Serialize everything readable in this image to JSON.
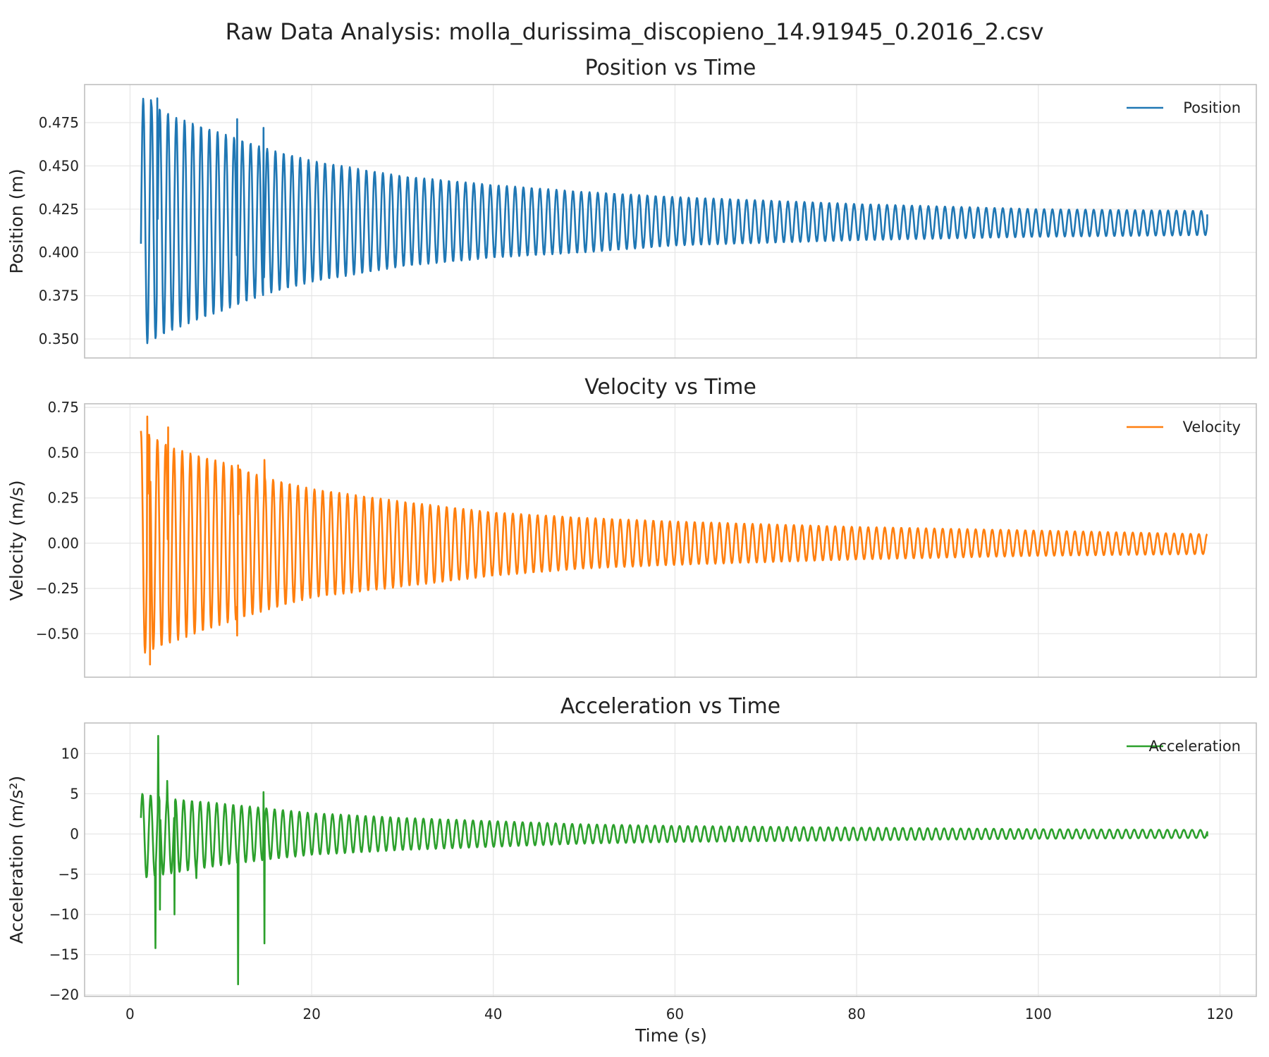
{
  "figure_title": "Raw Data Analysis: molla_durissima_discopieno_14.91945_0.2016_2.csv",
  "xlabel": "Time (s)",
  "chart_data": [
    {
      "type": "line",
      "title": "Position vs Time",
      "ylabel": "Position (m)",
      "xlabel": "",
      "xlim": [
        -5,
        124
      ],
      "ylim": [
        0.339,
        0.497
      ],
      "xticks": [
        0,
        20,
        40,
        60,
        80,
        100,
        120
      ],
      "yticks": [
        0.35,
        0.375,
        0.4,
        0.425,
        0.45,
        0.475
      ],
      "ytick_labels": [
        "0.350",
        "0.375",
        "0.400",
        "0.425",
        "0.450",
        "0.475"
      ],
      "grid": true,
      "legend_position": "top-right",
      "series": [
        {
          "name": "Position",
          "color": "#1f77b4",
          "t_start": 1.2,
          "t_end": 118.6,
          "period_s": 0.91,
          "start_value": 0.405,
          "end_value": 0.422,
          "envelope_points": [
            {
              "t": 1.4,
              "max": 0.489,
              "min": 0.346
            },
            {
              "t": 5,
              "max": 0.478,
              "min": 0.356
            },
            {
              "t": 10,
              "max": 0.469,
              "min": 0.366
            },
            {
              "t": 15,
              "max": 0.46,
              "min": 0.376
            },
            {
              "t": 20,
              "max": 0.453,
              "min": 0.383
            },
            {
              "t": 30,
              "max": 0.444,
              "min": 0.392
            },
            {
              "t": 40,
              "max": 0.439,
              "min": 0.397
            },
            {
              "t": 50,
              "max": 0.435,
              "min": 0.4
            },
            {
              "t": 60,
              "max": 0.432,
              "min": 0.404
            },
            {
              "t": 80,
              "max": 0.428,
              "min": 0.407
            },
            {
              "t": 100,
              "max": 0.425,
              "min": 0.409
            },
            {
              "t": 118.6,
              "max": 0.424,
              "min": 0.41
            }
          ],
          "spikes": [
            {
              "t": 2.3,
              "value": 0.488
            },
            {
              "t": 3.0,
              "value": 0.489
            },
            {
              "t": 11.8,
              "value": 0.477
            },
            {
              "t": 14.7,
              "value": 0.472
            }
          ]
        }
      ]
    },
    {
      "type": "line",
      "title": "Velocity vs Time",
      "ylabel": "Velocity (m/s)",
      "xlabel": "",
      "xlim": [
        -5,
        124
      ],
      "ylim": [
        -0.74,
        0.77
      ],
      "xticks": [
        0,
        20,
        40,
        60,
        80,
        100,
        120
      ],
      "yticks": [
        -0.5,
        -0.25,
        0,
        0.25,
        0.5,
        0.75
      ],
      "ytick_labels": [
        "−0.50",
        "−0.25",
        "0.00",
        "0.25",
        "0.50",
        "0.75"
      ],
      "grid": true,
      "legend_position": "top-right",
      "series": [
        {
          "name": "Velocity",
          "color": "#ff7f0e",
          "t_start": 1.2,
          "t_end": 118.6,
          "period_s": 0.91,
          "start_value": 0.62,
          "end_value": 0.05,
          "envelope_points": [
            {
              "t": 1.4,
              "max": 0.62,
              "min": -0.61
            },
            {
              "t": 5,
              "max": 0.52,
              "min": -0.54
            },
            {
              "t": 10,
              "max": 0.45,
              "min": -0.45
            },
            {
              "t": 15,
              "max": 0.36,
              "min": -0.37
            },
            {
              "t": 20,
              "max": 0.3,
              "min": -0.3
            },
            {
              "t": 30,
              "max": 0.23,
              "min": -0.24
            },
            {
              "t": 40,
              "max": 0.17,
              "min": -0.18
            },
            {
              "t": 50,
              "max": 0.14,
              "min": -0.14
            },
            {
              "t": 60,
              "max": 0.12,
              "min": -0.12
            },
            {
              "t": 80,
              "max": 0.09,
              "min": -0.09
            },
            {
              "t": 100,
              "max": 0.07,
              "min": -0.07
            },
            {
              "t": 118.6,
              "max": 0.05,
              "min": -0.06
            }
          ],
          "spikes": [
            {
              "t": 1.9,
              "value": 0.7
            },
            {
              "t": 2.2,
              "value": -0.67
            },
            {
              "t": 4.2,
              "value": 0.64
            },
            {
              "t": 11.9,
              "value": 0.43
            },
            {
              "t": 11.8,
              "value": -0.51
            },
            {
              "t": 14.8,
              "value": 0.46
            }
          ]
        }
      ]
    },
    {
      "type": "line",
      "title": "Acceleration vs Time",
      "ylabel": "Acceleration (m/s²)",
      "xlabel": "Time (s)",
      "xlim": [
        -5,
        124
      ],
      "ylim": [
        -20.2,
        13.8
      ],
      "xticks": [
        0,
        20,
        40,
        60,
        80,
        100,
        120
      ],
      "yticks": [
        -20,
        -15,
        -10,
        -5,
        0,
        5,
        10
      ],
      "ytick_labels": [
        "−20",
        "−15",
        "−10",
        "−5",
        "0",
        "5",
        "10"
      ],
      "grid": true,
      "legend_position": "top-right",
      "series": [
        {
          "name": "Acceleration",
          "color": "#2ca02c",
          "t_start": 1.2,
          "t_end": 118.6,
          "period_s": 0.91,
          "start_value": 2.0,
          "end_value": -0.3,
          "envelope_points": [
            {
              "t": 1.4,
              "max": 5.0,
              "min": -5.5
            },
            {
              "t": 5,
              "max": 4.3,
              "min": -4.8
            },
            {
              "t": 10,
              "max": 3.8,
              "min": -3.9
            },
            {
              "t": 15,
              "max": 3.2,
              "min": -3.2
            },
            {
              "t": 20,
              "max": 2.6,
              "min": -2.6
            },
            {
              "t": 30,
              "max": 2.0,
              "min": -2.0
            },
            {
              "t": 40,
              "max": 1.6,
              "min": -1.6
            },
            {
              "t": 50,
              "max": 1.2,
              "min": -1.2
            },
            {
              "t": 60,
              "max": 1.0,
              "min": -1.0
            },
            {
              "t": 80,
              "max": 0.8,
              "min": -0.8
            },
            {
              "t": 100,
              "max": 0.6,
              "min": -0.6
            },
            {
              "t": 118.6,
              "max": 0.5,
              "min": -0.5
            }
          ],
          "spikes": [
            {
              "t": 2.8,
              "value": -14.2
            },
            {
              "t": 3.1,
              "value": 12.2
            },
            {
              "t": 3.3,
              "value": -9.4
            },
            {
              "t": 4.1,
              "value": 6.6
            },
            {
              "t": 4.9,
              "value": -10.0
            },
            {
              "t": 7.3,
              "value": -5.5
            },
            {
              "t": 11.9,
              "value": -18.7
            },
            {
              "t": 14.8,
              "value": -13.6
            },
            {
              "t": 14.7,
              "value": 5.2
            }
          ]
        }
      ]
    }
  ]
}
